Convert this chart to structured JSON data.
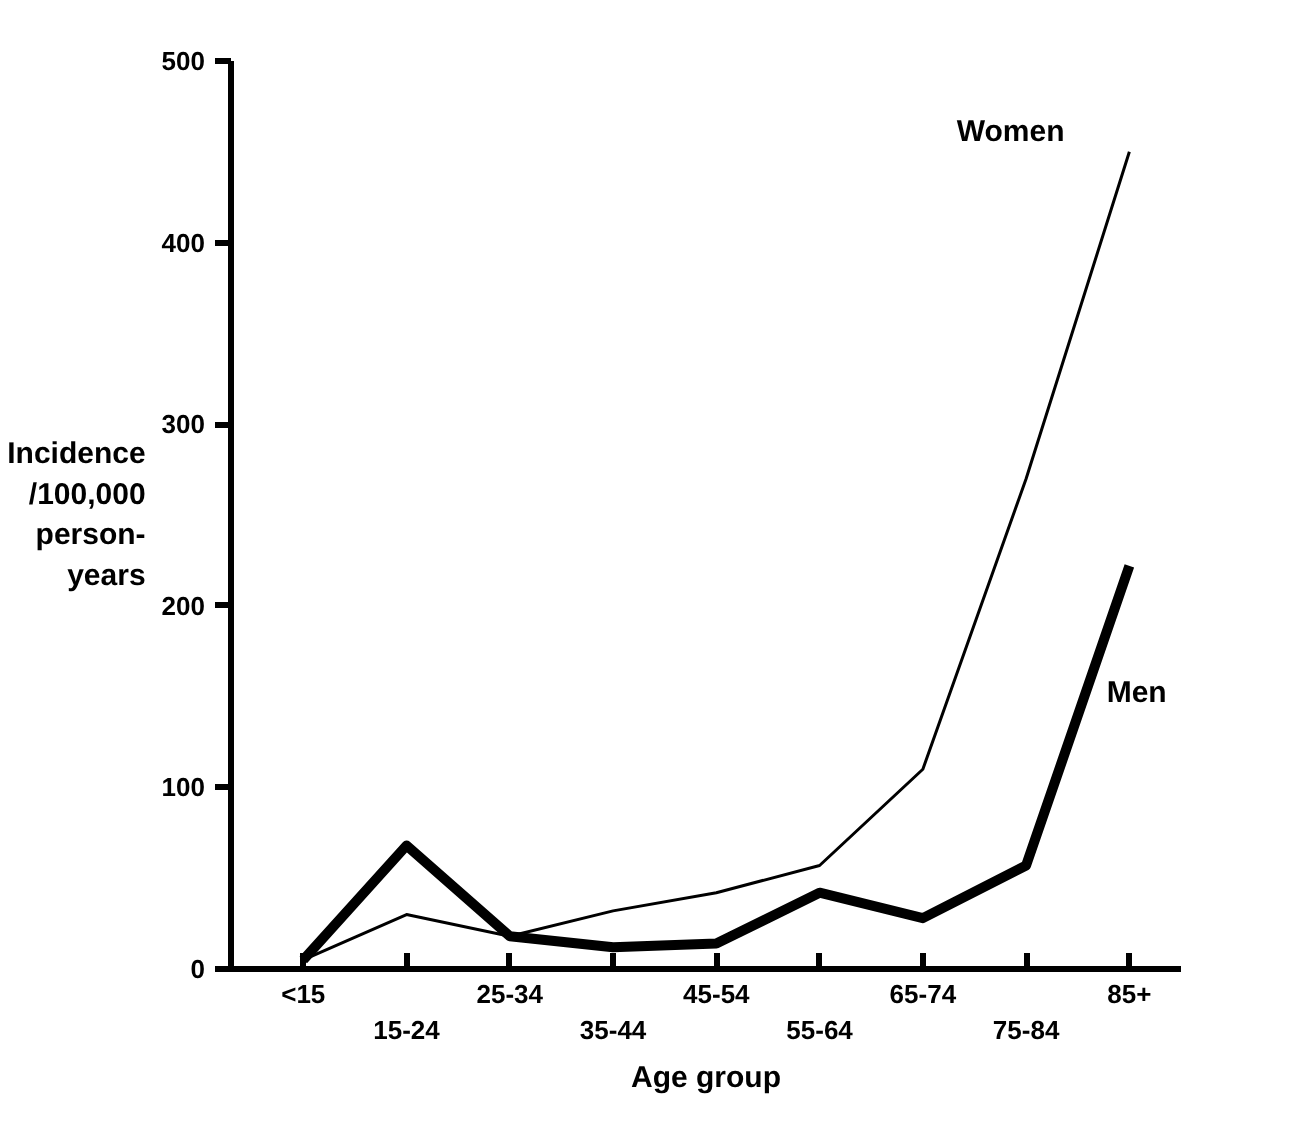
{
  "chart_data": {
    "type": "line",
    "xlabel": "Age group",
    "ylabel": "Incidence\n/100,000\nperson-\nyears",
    "categories": [
      "<15",
      "15-24",
      "25-34",
      "35-44",
      "45-54",
      "55-64",
      "65-74",
      "75-84",
      "85+"
    ],
    "series": [
      {
        "name": "Women",
        "color": "#000000",
        "values": [
          5,
          30,
          18,
          32,
          42,
          57,
          110,
          270,
          450
        ]
      },
      {
        "name": "Men",
        "color": "#000000",
        "values": [
          5,
          68,
          18,
          12,
          14,
          42,
          28,
          57,
          222
        ]
      }
    ],
    "ylim": [
      0,
      500
    ],
    "yticks": [
      0,
      100,
      200,
      300,
      400,
      500
    ],
    "grid": false,
    "legend": false,
    "marker": "none",
    "line_style": "solid"
  }
}
